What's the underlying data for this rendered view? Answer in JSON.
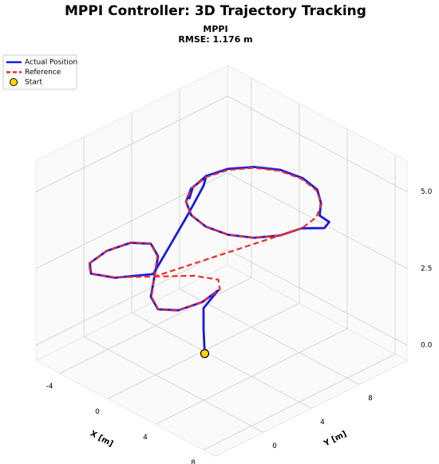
{
  "chart_data": {
    "type": "line3d",
    "title": "MPPI Controller: 3D Trajectory Tracking",
    "subtitle": [
      "MPPI",
      "RMSE: 1.176 m"
    ],
    "xlabel": "X [m]",
    "ylabel": "Y [m]",
    "xlim": [
      -6,
      9
    ],
    "ylim": [
      -4,
      12
    ],
    "zlim": [
      -0.5,
      6
    ],
    "xticks": [
      -4,
      0,
      4,
      8
    ],
    "yticks": [
      0,
      4,
      8
    ],
    "zticks": [
      {
        "value": 0,
        "label": "0.0"
      },
      {
        "value": 2.5,
        "label": "2.5"
      },
      {
        "value": 5,
        "label": "5.0"
      }
    ],
    "grid": true,
    "legend": "upper left",
    "series": [
      {
        "name": "Actual Position",
        "color": "#1a1ae0",
        "linestyle": "solid",
        "x": [
          1.5,
          1.7,
          2.0,
          1.9,
          2.2,
          1.9,
          1.0,
          -0.3,
          -1.8,
          -3.3,
          -4.6,
          -5.5,
          -5.8,
          -5.5,
          -4.6,
          -3.3,
          -1.8,
          -1.2,
          -0.5,
          -0.2,
          -0.3,
          0,
          0.87,
          2.17,
          3.7,
          5.23,
          6.53,
          7.4,
          7.7,
          8.6,
          8.3,
          7.4,
          6.4,
          5.2,
          3.7,
          2.1,
          0.8,
          -0.1,
          -0.4,
          0,
          0.8
        ],
        "y": [
          2.6,
          2.3,
          2.0,
          3.3,
          1.7,
          0,
          -0.8,
          -0.1,
          1.7,
          3.5,
          4.2,
          3.4,
          1.7,
          0,
          -0.8,
          -0.1,
          1.6,
          2.4,
          3.2,
          4.2,
          4.5,
          2.97,
          1.67,
          0.8,
          0.5,
          0.8,
          1.67,
          2.97,
          4.5,
          5.5,
          6.2,
          6.3,
          7.4,
          8.3,
          8.6,
          8.3,
          7.4,
          6.1,
          4.6,
          3.1,
          2.0
        ],
        "z": [
          0,
          0.9,
          1.7,
          2,
          2,
          2,
          2,
          2,
          2,
          2,
          2,
          2,
          2,
          2,
          2,
          2,
          2.1,
          3,
          4,
          4.8,
          5,
          5,
          5,
          5,
          5,
          5,
          5,
          5,
          5,
          5,
          5,
          5,
          5,
          5,
          5,
          5,
          5,
          5,
          5,
          5,
          5
        ]
      },
      {
        "name": "Reference",
        "color": "#ee2a2a",
        "linestyle": "dashed",
        "x": [
          -1.8,
          -0.27,
          1.03,
          1.9,
          2.2,
          1.9,
          1.03,
          -0.27,
          -1.8,
          -3.33,
          -4.63,
          -5.5,
          -5.8,
          -5.5,
          -4.63,
          -3.33,
          -1.8,
          7.7,
          7.4,
          6.53,
          5.23,
          3.7,
          2.17,
          0.87,
          0,
          -0.3,
          0,
          0.87,
          2.17,
          3.7,
          5.23,
          6.53,
          7.4,
          7.7
        ],
        "y": [
          1.7,
          3.47,
          4.2,
          3.47,
          1.7,
          -0.07,
          -0.8,
          -0.07,
          1.7,
          3.47,
          4.2,
          3.47,
          1.7,
          -0.07,
          -0.8,
          -0.07,
          1.7,
          4.5,
          6.03,
          7.33,
          8.2,
          8.5,
          8.2,
          7.33,
          6.03,
          4.5,
          2.97,
          1.67,
          0.8,
          0.5,
          0.8,
          1.67,
          2.97,
          4.5
        ],
        "z": [
          2,
          2,
          2,
          2,
          2,
          2,
          2,
          2,
          2,
          2,
          2,
          2,
          2,
          2,
          2,
          2,
          2,
          5,
          5,
          5,
          5,
          5,
          5,
          5,
          5,
          5,
          5,
          5,
          5,
          5,
          5,
          5,
          5,
          5
        ]
      },
      {
        "name": "Start",
        "color": "#ffd700",
        "linestyle": "none",
        "x": [
          1.5
        ],
        "y": [
          2.6
        ],
        "z": [
          0
        ]
      }
    ]
  }
}
